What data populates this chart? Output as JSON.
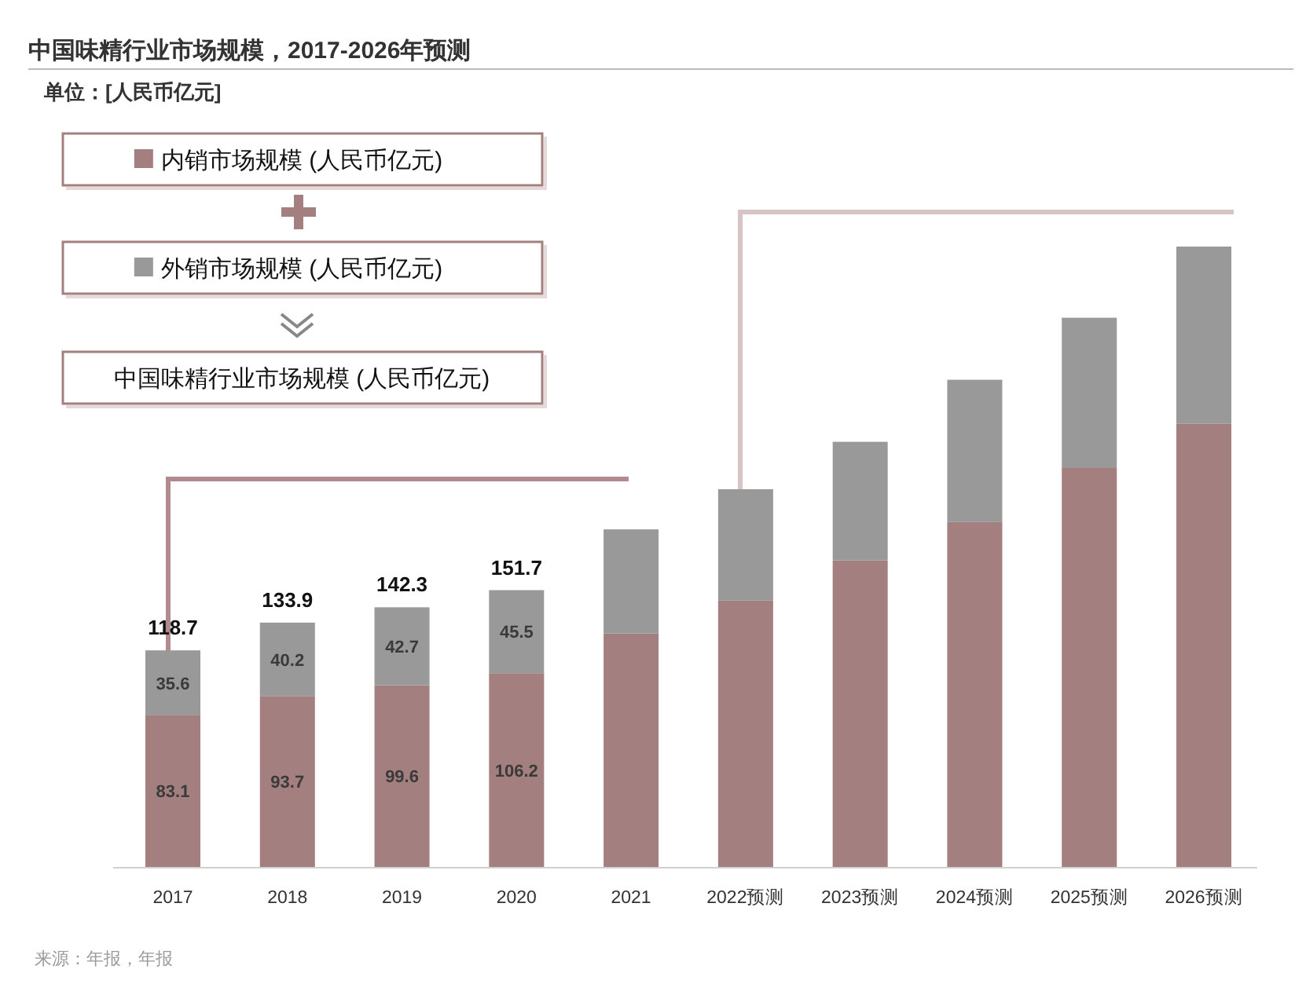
{
  "chart_data": {
    "type": "bar",
    "stacked": true,
    "title": "中国味精行业市场规模，2017-2026年预测",
    "subtitle": "单位：[人民币亿元]",
    "categories": [
      "2017",
      "2018",
      "2019",
      "2020",
      "2021",
      "2022预测",
      "2023预测",
      "2024预测",
      "2025预测",
      "2026预测"
    ],
    "series": [
      {
        "name": "内销市场规模 (人民币亿元)",
        "color": "#a37f80",
        "values": [
          83.1,
          93.7,
          99.6,
          106.2,
          128,
          146,
          168,
          189,
          219,
          243
        ],
        "value_labels": [
          "83.1",
          "93.7",
          "99.6",
          "106.2",
          null,
          null,
          null,
          null,
          null,
          null
        ]
      },
      {
        "name": "外销市场规模 (人民币亿元)",
        "color": "#999999",
        "values": [
          35.6,
          40.2,
          42.7,
          45.5,
          57,
          61,
          65,
          78,
          82,
          97
        ],
        "value_labels": [
          "35.6",
          "40.2",
          "42.7",
          "45.5",
          null,
          null,
          null,
          null,
          null,
          null
        ]
      }
    ],
    "totals": [
      "118.7",
      "133.9",
      "142.3",
      "151.7",
      null,
      null,
      null,
      null,
      null,
      null
    ],
    "legend": "top left",
    "annotations": [
      "中国味精行业市场规模 (人民币亿元)",
      "来源：年报，年报"
    ]
  }
}
